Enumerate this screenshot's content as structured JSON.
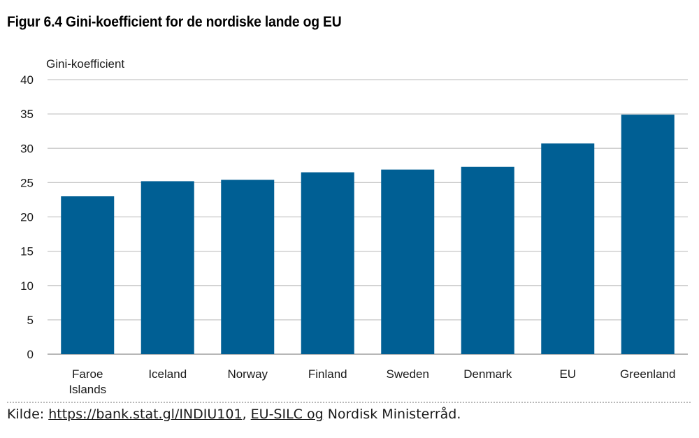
{
  "figure": {
    "title": "Figur 6.4 Gini-koefficient for de nordiske lande og EU"
  },
  "chart_data": {
    "type": "bar",
    "ylabel": "Gini-koefficient",
    "xlabel": "",
    "ylim": [
      0,
      40
    ],
    "yticks": [
      0,
      5,
      10,
      15,
      20,
      25,
      30,
      35,
      40
    ],
    "grid": true,
    "bar_color": "#005f94",
    "categories": [
      [
        "Faroe",
        "Islands"
      ],
      [
        "Iceland"
      ],
      [
        "Norway"
      ],
      [
        "Finland"
      ],
      [
        "Sweden"
      ],
      [
        "Denmark"
      ],
      [
        "EU"
      ],
      [
        "Greenland"
      ]
    ],
    "values": [
      23.0,
      25.2,
      25.4,
      26.5,
      26.9,
      27.3,
      30.7,
      34.9
    ]
  },
  "source": {
    "prefix": "Kilde: ",
    "link1": "https://bank.stat.gl/INDIU101",
    "sep": ", ",
    "link2": "EU-SILC og",
    "suffix": " Nordisk Ministerråd."
  }
}
